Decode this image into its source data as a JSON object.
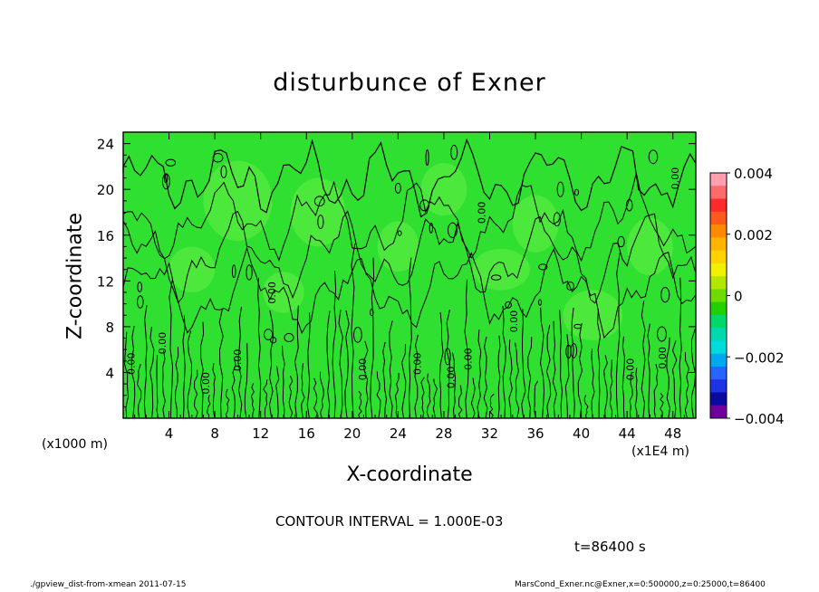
{
  "chart_data": {
    "type": "heatmap",
    "title": "disturbunce of Exner",
    "xlabel": "X-coordinate",
    "ylabel": "Z-coordinate",
    "x_unit_left": "(x1000 m)",
    "x_unit_right": "(x1E4 m)",
    "xlim": [
      0,
      50
    ],
    "ylim": [
      0,
      25
    ],
    "x_ticks": [
      "4",
      "8",
      "12",
      "16",
      "20",
      "24",
      "28",
      "32",
      "36",
      "40",
      "44",
      "48"
    ],
    "y_ticks": [
      "4",
      "8",
      "12",
      "16",
      "20",
      "24"
    ],
    "colorbar": {
      "range": [
        -0.004,
        0.004
      ],
      "tick_labels": [
        "0.004",
        "0.002",
        "0",
        "−0.002",
        "−0.004"
      ],
      "colors": [
        "#ff9faf",
        "#ff6a6a",
        "#ff2a2a",
        "#ff5a1e",
        "#ff8a00",
        "#ffb400",
        "#ffd200",
        "#f0f000",
        "#b4e600",
        "#6edc00",
        "#22d000",
        "#00d86a",
        "#00d8b0",
        "#00dcdc",
        "#00a8f0",
        "#2864ff",
        "#1e32e6",
        "#0a0aa0",
        "#6e00a0"
      ]
    },
    "field_color": "#30e030",
    "contour_color": "#000000",
    "contour_label": "0.00",
    "contour_interval_text": "CONTOUR INTERVAL = 1.000E-03",
    "time_text": "t=86400 s"
  },
  "footer": {
    "left": "./gpview_dist-from-xmean  2011-07-15",
    "right": "MarsCond_Exner.nc@Exner,x=0:500000,z=0:25000,t=86400"
  }
}
